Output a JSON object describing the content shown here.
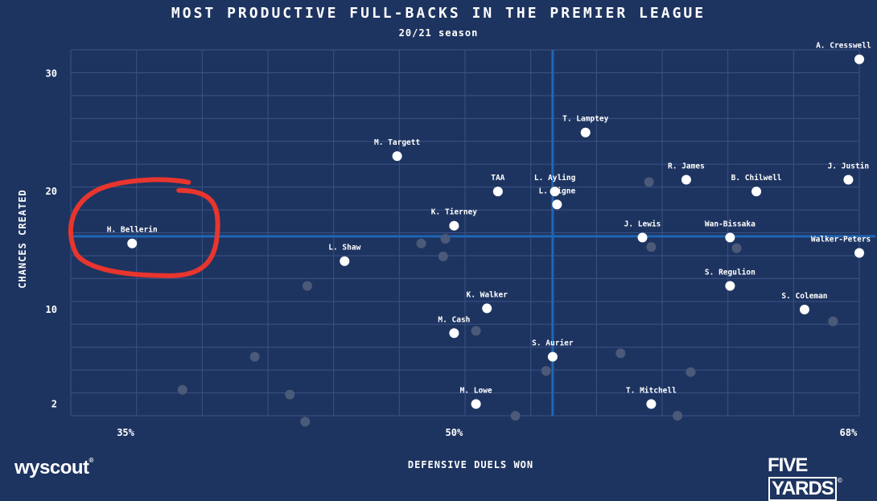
{
  "header": {
    "title": "MOST PRODUCTIVE FULL-BACKS IN THE PREMIER LEAGUE",
    "subtitle": "20/21 season"
  },
  "footer": {
    "left_logo": "wyscout",
    "right_logo_a": "FIVE",
    "right_logo_b": "YARDS"
  },
  "colors": {
    "background": "#1e3460",
    "grid": "#3a5286",
    "reference_line": "#1f66b3",
    "highlight_dot": "#ffffff",
    "other_dot": "#4a5a78",
    "annotation": "#e8352d"
  },
  "chart_data": {
    "type": "scatter",
    "title": "MOST PRODUCTIVE FULL-BACKS IN THE PREMIER LEAGUE",
    "subtitle": "20/21 season",
    "xlabel": "DEFENSIVE DUELS WON",
    "ylabel": "CHANCES CREATED",
    "x_unit": "%",
    "xlim": [
      32.5,
      68.5
    ],
    "ylim": [
      1,
      32
    ],
    "x_ticks": [
      {
        "value": 35,
        "label": "35%"
      },
      {
        "value": 50,
        "label": "50%"
      },
      {
        "value": 68,
        "label": "68%"
      }
    ],
    "y_ticks": [
      {
        "value": 2,
        "label": "2"
      },
      {
        "value": 10,
        "label": "10"
      },
      {
        "value": 20,
        "label": "20"
      },
      {
        "value": 30,
        "label": "30"
      }
    ],
    "grid": true,
    "reference_lines": {
      "x": 54.5,
      "y": 16.2
    },
    "labeled_players": [
      {
        "name": "A. Cresswell",
        "x": 68.5,
        "y": 31.2
      },
      {
        "name": "T. Lamptey",
        "x": 56.0,
        "y": 25.0
      },
      {
        "name": "M. Targett",
        "x": 47.4,
        "y": 23.0
      },
      {
        "name": "R. James",
        "x": 60.6,
        "y": 21.0
      },
      {
        "name": "J. Justin",
        "x": 68.0,
        "y": 21.0
      },
      {
        "name": "TAA",
        "x": 52.0,
        "y": 20.0
      },
      {
        "name": "L. Ayling",
        "x": 54.6,
        "y": 20.0
      },
      {
        "name": "B. Chilwell",
        "x": 63.8,
        "y": 20.0
      },
      {
        "name": "L. Digne",
        "x": 54.7,
        "y": 18.9
      },
      {
        "name": "K. Tierney",
        "x": 50.0,
        "y": 17.1
      },
      {
        "name": "J. Lewis",
        "x": 58.6,
        "y": 16.1
      },
      {
        "name": "Wan-Bissaka",
        "x": 62.6,
        "y": 16.1
      },
      {
        "name": "H. Bellerin",
        "x": 35.3,
        "y": 15.6
      },
      {
        "name": "Walker-Peters",
        "x": 68.5,
        "y": 14.8
      },
      {
        "name": "L. Shaw",
        "x": 45.0,
        "y": 14.1
      },
      {
        "name": "S. Regulion",
        "x": 62.6,
        "y": 12.0
      },
      {
        "name": "K. Walker",
        "x": 51.5,
        "y": 10.1
      },
      {
        "name": "S. Coleman",
        "x": 66.0,
        "y": 10.0
      },
      {
        "name": "M. Cash",
        "x": 50.0,
        "y": 8.0
      },
      {
        "name": "S. Aurier",
        "x": 54.5,
        "y": 6.0
      },
      {
        "name": "M. Lowe",
        "x": 51.0,
        "y": 2.0
      },
      {
        "name": "T. Mitchell",
        "x": 59.0,
        "y": 2.0
      }
    ],
    "other_players": [
      {
        "x": 37.6,
        "y": 3.2
      },
      {
        "x": 40.9,
        "y": 6.0
      },
      {
        "x": 42.5,
        "y": 2.8
      },
      {
        "x": 43.2,
        "y": 0.5
      },
      {
        "x": 43.3,
        "y": 12.0
      },
      {
        "x": 48.5,
        "y": 15.6
      },
      {
        "x": 49.5,
        "y": 14.5
      },
      {
        "x": 49.6,
        "y": 16.0
      },
      {
        "x": 51.0,
        "y": 8.2
      },
      {
        "x": 52.8,
        "y": 1.0
      },
      {
        "x": 54.2,
        "y": 4.8
      },
      {
        "x": 57.6,
        "y": 6.3
      },
      {
        "x": 58.9,
        "y": 20.8
      },
      {
        "x": 59.0,
        "y": 15.3
      },
      {
        "x": 60.2,
        "y": 1.0
      },
      {
        "x": 60.8,
        "y": 4.7
      },
      {
        "x": 62.9,
        "y": 15.2
      },
      {
        "x": 67.3,
        "y": 9.0
      }
    ],
    "annotations": [
      {
        "type": "hand-drawn circle",
        "target": "H. Bellerin"
      }
    ]
  }
}
